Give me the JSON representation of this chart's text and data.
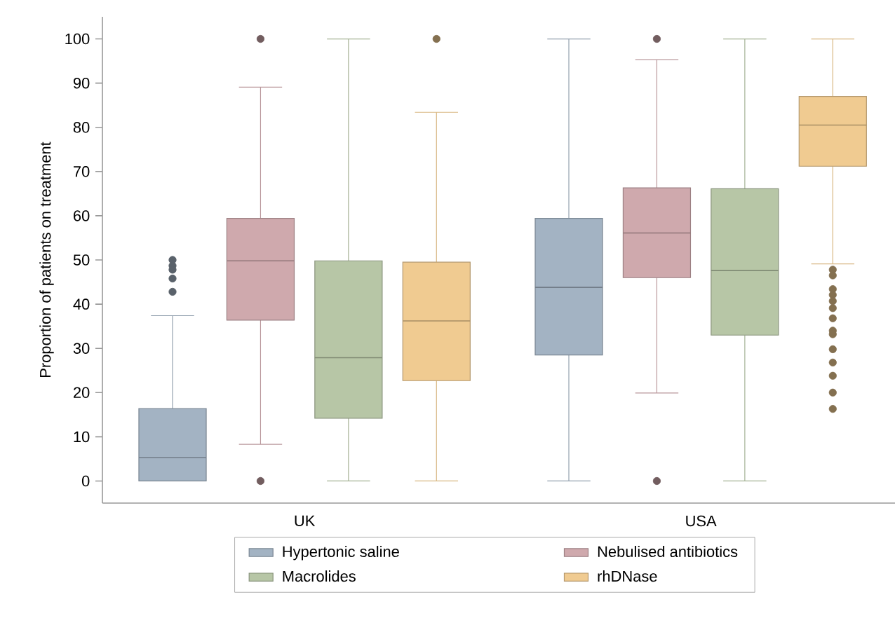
{
  "chart_data": {
    "type": "box",
    "ylabel": "Proportion of patients on treatment",
    "categories": [
      "UK",
      "USA"
    ],
    "ylim": [
      -5,
      105
    ],
    "yticks": [
      0,
      10,
      20,
      30,
      40,
      50,
      60,
      70,
      80,
      90,
      100
    ],
    "legend": "bottom",
    "series": [
      {
        "name": "Hypertonic saline",
        "color": "#a3b3c3",
        "boxes": [
          {
            "low": 0,
            "q1": 0,
            "median": 5.3,
            "q3": 16.4,
            "high": 37.4,
            "outliers": [
              50,
              48.7,
              47.8,
              45.8,
              42.8
            ]
          },
          {
            "low": 0,
            "q1": 28.5,
            "median": 43.8,
            "q3": 59.4,
            "high": 100
          }
        ]
      },
      {
        "name": "Nebulised antibiotics",
        "color": "#cfa9ad",
        "boxes": [
          {
            "low": 8.3,
            "q1": 36.4,
            "median": 49.8,
            "q3": 59.4,
            "high": 89.1,
            "outliers": [
              0,
              100
            ]
          },
          {
            "low": 19.9,
            "q1": 46.0,
            "median": 56.1,
            "q3": 66.3,
            "high": 95.3,
            "outliers": [
              0,
              100
            ]
          }
        ]
      },
      {
        "name": "Macrolides",
        "color": "#b7c6a6",
        "boxes": [
          {
            "low": 0,
            "q1": 14.2,
            "median": 27.9,
            "q3": 49.8,
            "high": 100
          },
          {
            "low": 0,
            "q1": 33.0,
            "median": 47.6,
            "q3": 66.1,
            "high": 100
          }
        ]
      },
      {
        "name": "rhDNase",
        "color": "#f0cb91",
        "boxes": [
          {
            "low": 0,
            "q1": 22.7,
            "median": 36.2,
            "q3": 49.5,
            "high": 83.4,
            "outliers": [
              100
            ]
          },
          {
            "low": 49.1,
            "q1": 71.2,
            "median": 80.5,
            "q3": 87.0,
            "high": 100,
            "outliers": [
              47.8,
              46.5,
              43.4,
              42.1,
              40.7,
              39.1,
              36.8,
              34.0,
              33.2,
              29.8,
              26.8,
              23.8,
              20.0,
              16.3
            ]
          }
        ]
      }
    ]
  }
}
